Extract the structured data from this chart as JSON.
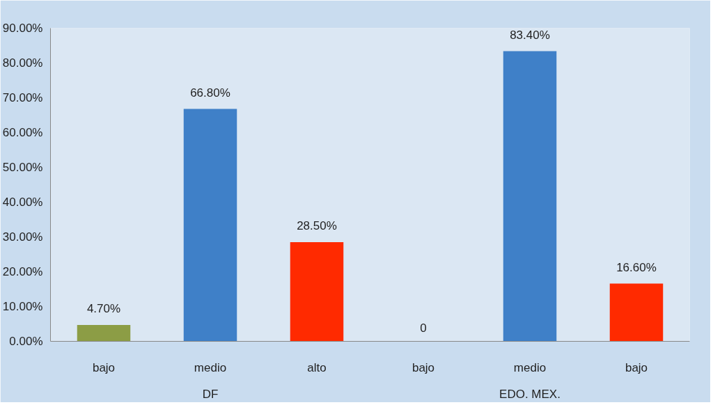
{
  "chart_data": {
    "type": "bar",
    "categories": [
      "bajo",
      "medio",
      "alto",
      "bajo",
      "medio",
      "bajo"
    ],
    "values": [
      4.7,
      66.8,
      28.5,
      0,
      83.4,
      16.6
    ],
    "colors": [
      "#8c9d45",
      "#3f80c8",
      "#ff2a00",
      "#8c9d45",
      "#3f80c8",
      "#ff2a00"
    ],
    "value_labels": [
      "4.70%",
      "66.80%",
      "28.50%",
      "0",
      "83.40%",
      "16.60%"
    ],
    "annotations": [
      "DF",
      "EDO. MEX."
    ],
    "ylim": [
      0,
      90
    ],
    "yticks": [
      {
        "value": 0,
        "label": "0.00%"
      },
      {
        "value": 10,
        "label": "10.00%"
      },
      {
        "value": 20,
        "label": "20.00%"
      },
      {
        "value": 30,
        "label": "30.00%"
      },
      {
        "value": 40,
        "label": "40.00%"
      },
      {
        "value": 50,
        "label": "50.00%"
      },
      {
        "value": 60,
        "label": "60.00%"
      },
      {
        "value": 70,
        "label": "70.00%"
      },
      {
        "value": 80,
        "label": "80.00%"
      },
      {
        "value": 90,
        "label": "90.00%"
      }
    ],
    "grid": false
  }
}
